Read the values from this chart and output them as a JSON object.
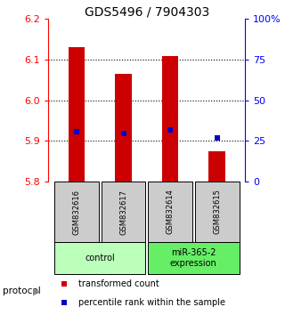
{
  "title": "GDS5496 / 7904303",
  "samples": [
    "GSM832616",
    "GSM832617",
    "GSM832614",
    "GSM832615"
  ],
  "groups": [
    {
      "label": "control",
      "indices": [
        0,
        1
      ],
      "color": "#bbffbb"
    },
    {
      "label": "miR-365-2\nexpression",
      "indices": [
        2,
        3
      ],
      "color": "#66ee66"
    }
  ],
  "transformed_counts": [
    6.13,
    6.065,
    6.108,
    5.875
  ],
  "percentile_ranks": [
    5.922,
    5.918,
    5.926,
    5.906
  ],
  "bar_bottom": 5.8,
  "ylim": [
    5.8,
    6.2
  ],
  "yticks_left": [
    5.8,
    5.9,
    6.0,
    6.1,
    6.2
  ],
  "yticks_right": [
    0,
    25,
    50,
    75,
    100
  ],
  "yticks_right_values": [
    5.8,
    5.9,
    6.0,
    6.1,
    6.2
  ],
  "bar_color": "#cc0000",
  "percentile_color": "#0000cc",
  "bar_width": 0.35,
  "legend_labels": [
    "transformed count",
    "percentile rank within the sample"
  ],
  "legend_colors": [
    "#cc0000",
    "#0000cc"
  ],
  "sample_box_color": "#cccccc",
  "title_fontsize": 10,
  "grid_yticks": [
    5.9,
    6.0,
    6.1
  ]
}
